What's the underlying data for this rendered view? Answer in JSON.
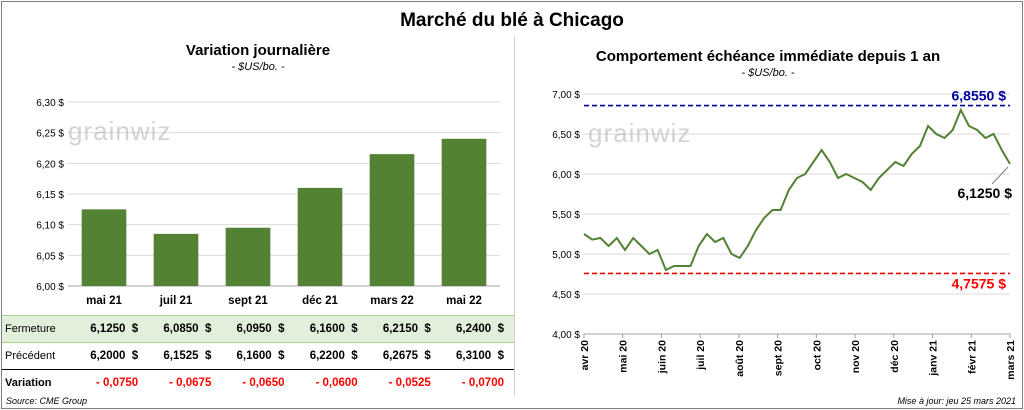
{
  "title": "Marché du blé à Chicago",
  "left_chart": {
    "subtitle": "Variation journalière",
    "unit": "- $US/bo. -"
  },
  "right_chart": {
    "subtitle": "Comportement  échéance immédiate depuis 1 an",
    "unit": "- $US/bo. -"
  },
  "watermark": "grainwiz",
  "table": {
    "rows": [
      {
        "label": "Fermeture",
        "values": [
          "6,1250  $",
          "6,0850  $",
          "6,0950  $",
          "6,1600  $",
          "6,2150  $",
          "6,2400  $"
        ]
      },
      {
        "label": "Précédent",
        "values": [
          "6,2000  $",
          "6,1525  $",
          "6,1600  $",
          "6,2200  $",
          "6,2675  $",
          "6,3100  $"
        ]
      },
      {
        "label": "Variation",
        "values": [
          "- 0,0750",
          "- 0,0675",
          "- 0,0650",
          "- 0,0600",
          "- 0,0525",
          "- 0,0700"
        ]
      }
    ]
  },
  "footer": {
    "source": "Source: CME Group",
    "updated": "Mise à jour: jeu 25 mars 2021"
  },
  "colors": {
    "bar": "#548235",
    "line": "#548235",
    "high": "#0000a0",
    "low": "#ff0000"
  },
  "chart_data": [
    {
      "type": "bar",
      "title": "Variation journalière",
      "ylabel": "- $US/bo. -",
      "categories": [
        "mai 21",
        "juil 21",
        "sept 21",
        "déc 21",
        "mars 22",
        "mai 22"
      ],
      "values": [
        6.125,
        6.085,
        6.095,
        6.16,
        6.215,
        6.24
      ],
      "ylim": [
        6.0,
        6.3
      ],
      "yticks": [
        "6,00 $",
        "6,05 $",
        "6,10 $",
        "6,15 $",
        "6,20 $",
        "6,25 $",
        "6,30 $"
      ],
      "grid": true
    },
    {
      "type": "line",
      "title": "Comportement  échéance immédiate depuis 1 an",
      "ylabel": "- $US/bo. -",
      "ylim": [
        4.0,
        7.0
      ],
      "yticks": [
        "4,00 $",
        "4,50 $",
        "5,00 $",
        "5,50 $",
        "6,00 $",
        "6,50 $",
        "7,00 $"
      ],
      "xticks": [
        "avr 20",
        "mai 20",
        "juin 20",
        "juil 20",
        "août 20",
        "sept 20",
        "oct 20",
        "nov 20",
        "déc 20",
        "janv 21",
        "févr 21",
        "mars 21"
      ],
      "x": [
        "2020-03-26",
        "2020-04-02",
        "2020-04-09",
        "2020-04-16",
        "2020-04-23",
        "2020-04-30",
        "2020-05-07",
        "2020-05-14",
        "2020-05-21",
        "2020-05-28",
        "2020-06-04",
        "2020-06-11",
        "2020-06-18",
        "2020-06-25",
        "2020-07-02",
        "2020-07-09",
        "2020-07-16",
        "2020-07-23",
        "2020-07-30",
        "2020-08-06",
        "2020-08-13",
        "2020-08-20",
        "2020-08-27",
        "2020-09-03",
        "2020-09-10",
        "2020-09-17",
        "2020-09-24",
        "2020-10-01",
        "2020-10-08",
        "2020-10-15",
        "2020-10-22",
        "2020-10-29",
        "2020-11-05",
        "2020-11-12",
        "2020-11-19",
        "2020-11-26",
        "2020-12-03",
        "2020-12-10",
        "2020-12-17",
        "2020-12-24",
        "2020-12-31",
        "2021-01-07",
        "2021-01-14",
        "2021-01-21",
        "2021-01-28",
        "2021-02-04",
        "2021-02-11",
        "2021-02-18",
        "2021-02-25",
        "2021-03-04",
        "2021-03-11",
        "2021-03-18",
        "2021-03-25"
      ],
      "series": [
        {
          "values": [
            5.25,
            5.18,
            5.2,
            5.1,
            5.2,
            5.05,
            5.2,
            5.1,
            5.0,
            5.05,
            4.8,
            4.85,
            4.85,
            4.85,
            5.1,
            5.25,
            5.15,
            5.2,
            5.0,
            4.95,
            5.1,
            5.3,
            5.45,
            5.55,
            5.55,
            5.8,
            5.95,
            6.0,
            6.15,
            6.3,
            6.15,
            5.95,
            6.0,
            5.95,
            5.9,
            5.8,
            5.95,
            6.05,
            6.15,
            6.1,
            6.25,
            6.35,
            6.6,
            6.5,
            6.45,
            6.55,
            6.8,
            6.6,
            6.55,
            6.45,
            6.5,
            6.3,
            6.125
          ]
        }
      ],
      "annotations": [
        {
          "label": "6,8550 $",
          "value": 6.855,
          "kind": "high"
        },
        {
          "label": "4,7575 $",
          "value": 4.7575,
          "kind": "low"
        },
        {
          "label": "6,1250 $",
          "value": 6.125,
          "kind": "last"
        }
      ],
      "grid": true
    }
  ]
}
